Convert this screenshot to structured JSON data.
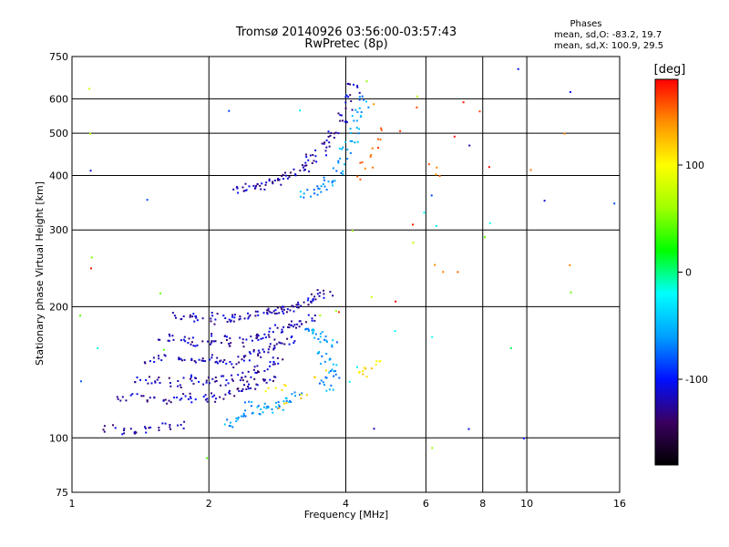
{
  "chart_data": {
    "type": "scatter",
    "title": "Tromsø 20140926 03:56:00-03:57:43",
    "subtitle": "RwPretec (8p)",
    "xlabel": "Frequency [MHz]",
    "ylabel": "Stationary phase Virtual Height [km]",
    "x_scale": "log",
    "y_scale": "log",
    "xlim": [
      1,
      16
    ],
    "ylim": [
      75,
      750
    ],
    "x_ticks": [
      1,
      2,
      4,
      6,
      8,
      10,
      16
    ],
    "x_tick_labels": [
      "1",
      "2",
      "4",
      "6",
      "8",
      "10",
      "16"
    ],
    "y_ticks": [
      75,
      100,
      200,
      300,
      400,
      500,
      600,
      750
    ],
    "y_tick_labels": [
      "75",
      "100",
      "200",
      "300",
      "400",
      "500",
      "600",
      "750"
    ],
    "grid": true,
    "stats": {
      "heading": "Phases",
      "line_o": "mean, sd,O: -83.2, 19.7",
      "line_x": "mean, sd,X: 100.9, 29.5"
    },
    "colorbar": {
      "label": "[deg]",
      "ticks": [
        100,
        0,
        -100
      ],
      "tick_labels": [
        "100",
        "0",
        "-100"
      ],
      "range": [
        -180,
        180
      ],
      "colors": [
        "#000000",
        "#3a0060",
        "#0010ff",
        "#00a0ff",
        "#00ffff",
        "#00ff00",
        "#a0ff00",
        "#ffff00",
        "#ff9000",
        "#ff0000"
      ]
    },
    "series": [
      {
        "phase_deg": -120,
        "points": [
          [
            1.7,
            190
          ],
          [
            1.8,
            190
          ],
          [
            1.9,
            188
          ],
          [
            2.0,
            186
          ],
          [
            2.1,
            190
          ],
          [
            2.2,
            188
          ],
          [
            2.3,
            186
          ],
          [
            2.4,
            190
          ],
          [
            2.5,
            192
          ],
          [
            2.6,
            195
          ],
          [
            2.7,
            193
          ],
          [
            2.8,
            196
          ],
          [
            2.9,
            195
          ],
          [
            3.0,
            198
          ],
          [
            3.1,
            200
          ],
          [
            3.2,
            203
          ],
          [
            3.3,
            206
          ],
          [
            3.4,
            210
          ],
          [
            3.5,
            212
          ],
          [
            3.6,
            215
          ],
          [
            1.6,
            168
          ],
          [
            1.7,
            170
          ],
          [
            1.8,
            168
          ],
          [
            1.9,
            165
          ],
          [
            2.0,
            166
          ],
          [
            2.1,
            170
          ],
          [
            2.2,
            168
          ],
          [
            2.3,
            165
          ],
          [
            2.4,
            168
          ],
          [
            2.5,
            170
          ],
          [
            2.6,
            172
          ],
          [
            2.7,
            170
          ],
          [
            2.8,
            175
          ],
          [
            2.9,
            178
          ],
          [
            3.0,
            180
          ],
          [
            3.1,
            183
          ],
          [
            3.2,
            185
          ],
          [
            3.3,
            188
          ],
          [
            1.5,
            150
          ],
          [
            1.6,
            152
          ],
          [
            1.7,
            150
          ],
          [
            1.8,
            148
          ],
          [
            1.9,
            150
          ],
          [
            2.0,
            152
          ],
          [
            2.1,
            150
          ],
          [
            2.2,
            148
          ],
          [
            2.3,
            150
          ],
          [
            2.4,
            152
          ],
          [
            2.5,
            155
          ],
          [
            2.6,
            158
          ],
          [
            2.7,
            160
          ],
          [
            2.8,
            162
          ],
          [
            2.9,
            165
          ],
          [
            3.0,
            168
          ],
          [
            1.4,
            135
          ],
          [
            1.5,
            136
          ],
          [
            1.6,
            135
          ],
          [
            1.7,
            133
          ],
          [
            1.8,
            135
          ],
          [
            1.9,
            137
          ],
          [
            2.0,
            135
          ],
          [
            2.1,
            134
          ],
          [
            2.2,
            136
          ],
          [
            2.3,
            138
          ],
          [
            2.4,
            140
          ],
          [
            2.5,
            143
          ],
          [
            2.6,
            145
          ],
          [
            2.7,
            147
          ],
          [
            2.8,
            150
          ],
          [
            1.3,
            122
          ],
          [
            1.4,
            124
          ],
          [
            1.5,
            123
          ],
          [
            1.6,
            122
          ],
          [
            1.7,
            124
          ],
          [
            1.8,
            125
          ],
          [
            1.9,
            123
          ],
          [
            2.0,
            122
          ],
          [
            2.1,
            125
          ],
          [
            2.2,
            127
          ],
          [
            2.3,
            128
          ],
          [
            2.4,
            130
          ],
          [
            2.5,
            132
          ],
          [
            2.6,
            134
          ],
          [
            2.7,
            136
          ],
          [
            1.2,
            105
          ],
          [
            1.3,
            104
          ],
          [
            1.4,
            103
          ],
          [
            1.5,
            105
          ],
          [
            1.6,
            106
          ],
          [
            1.7,
            107
          ],
          [
            2.3,
            370
          ],
          [
            2.4,
            372
          ],
          [
            2.5,
            375
          ],
          [
            2.6,
            378
          ],
          [
            2.7,
            382
          ],
          [
            2.8,
            388
          ],
          [
            2.9,
            392
          ],
          [
            3.0,
            398
          ],
          [
            3.1,
            405
          ],
          [
            3.2,
            415
          ],
          [
            3.3,
            425
          ],
          [
            3.4,
            438
          ],
          [
            3.5,
            452
          ],
          [
            3.6,
            468
          ],
          [
            3.7,
            485
          ],
          [
            3.8,
            505
          ],
          [
            3.9,
            530
          ],
          [
            4.0,
            560
          ],
          [
            4.05,
            600
          ],
          [
            4.1,
            640
          ]
        ],
        "spread": 0.04,
        "per_point": 5
      },
      {
        "phase_deg": -60,
        "points": [
          [
            3.3,
            180
          ],
          [
            3.4,
            175
          ],
          [
            3.5,
            172
          ],
          [
            3.6,
            168
          ],
          [
            3.7,
            165
          ],
          [
            3.5,
            155
          ],
          [
            3.6,
            150
          ],
          [
            3.7,
            145
          ],
          [
            3.8,
            140
          ],
          [
            3.6,
            135
          ],
          [
            3.7,
            130
          ],
          [
            2.5,
            120
          ],
          [
            2.6,
            118
          ],
          [
            2.7,
            116
          ],
          [
            2.8,
            118
          ],
          [
            2.9,
            120
          ],
          [
            3.0,
            122
          ],
          [
            3.1,
            125
          ],
          [
            2.2,
            108
          ],
          [
            2.3,
            110
          ],
          [
            2.4,
            112
          ],
          [
            2.5,
            114
          ],
          [
            3.3,
            360
          ],
          [
            3.4,
            368
          ],
          [
            3.5,
            375
          ],
          [
            3.6,
            385
          ],
          [
            3.7,
            395
          ],
          [
            3.8,
            410
          ],
          [
            3.9,
            430
          ],
          [
            4.0,
            455
          ],
          [
            4.1,
            480
          ],
          [
            4.2,
            510
          ],
          [
            4.3,
            540
          ],
          [
            4.35,
            570
          ],
          [
            4.4,
            600
          ]
        ],
        "spread": 0.04,
        "per_point": 5
      },
      {
        "phase_deg": 110,
        "points": [
          [
            3.0,
            130
          ],
          [
            3.2,
            125
          ],
          [
            2.7,
            128
          ],
          [
            4.4,
            142
          ],
          [
            4.5,
            145
          ],
          [
            4.6,
            148
          ],
          [
            4.3,
            140
          ],
          [
            3.5,
            140
          ],
          [
            2.9,
            118
          ]
        ],
        "spread": 0.04,
        "per_point": 3
      },
      {
        "phase_deg": 150,
        "points": [
          [
            4.4,
            430
          ],
          [
            4.5,
            445
          ],
          [
            4.6,
            460
          ],
          [
            4.5,
            420
          ],
          [
            4.7,
            480
          ],
          [
            4.3,
            395
          ],
          [
            6.2,
            420
          ],
          [
            6.3,
            400
          ],
          [
            4.8,
            510
          ]
        ],
        "spread": 0.025,
        "per_point": 2
      },
      {
        "phase_deg": -100,
        "points": [
          [
            4.2,
            640
          ],
          [
            4.3,
            620
          ],
          [
            4.0,
            610
          ],
          [
            1.1,
            410
          ],
          [
            1.45,
            350
          ],
          [
            2.2,
            560
          ],
          [
            6.2,
            360
          ],
          [
            7.5,
            470
          ],
          [
            9.5,
            700
          ],
          [
            11.0,
            350
          ],
          [
            12.5,
            620
          ],
          [
            15.5,
            345
          ],
          [
            4.6,
            105
          ],
          [
            7.5,
            105
          ],
          [
            9.8,
            100
          ],
          [
            1.05,
            135
          ]
        ],
        "spread": 0.01,
        "per_point": 1
      },
      {
        "phase_deg": 60,
        "points": [
          [
            1.1,
            630
          ],
          [
            1.1,
            500
          ],
          [
            1.1,
            260
          ],
          [
            1.05,
            190
          ],
          [
            1.55,
            215
          ],
          [
            3.5,
            190
          ],
          [
            4.6,
            210
          ],
          [
            5.6,
            280
          ],
          [
            8.0,
            290
          ],
          [
            12.5,
            215
          ],
          [
            4.1,
            300
          ],
          [
            3.8,
            195
          ],
          [
            5.8,
            605
          ],
          [
            4.45,
            655
          ],
          [
            2.0,
            90
          ],
          [
            6.2,
            95
          ],
          [
            1.6,
            160
          ]
        ],
        "spread": 0.01,
        "per_point": 1
      },
      {
        "phase_deg": 160,
        "points": [
          [
            1.1,
            245
          ],
          [
            6.5,
            240
          ],
          [
            7.0,
            240
          ],
          [
            6.3,
            250
          ],
          [
            5.3,
            505
          ],
          [
            5.7,
            575
          ],
          [
            7.2,
            590
          ],
          [
            7.9,
            560
          ],
          [
            10.3,
            410
          ],
          [
            12.0,
            500
          ],
          [
            6.9,
            490
          ],
          [
            5.6,
            310
          ],
          [
            8.2,
            420
          ],
          [
            3.9,
            195
          ],
          [
            5.1,
            205
          ],
          [
            4.6,
            585
          ],
          [
            12.5,
            250
          ]
        ],
        "spread": 0.01,
        "per_point": 1
      },
      {
        "phase_deg": -10,
        "points": [
          [
            4.1,
            135
          ],
          [
            4.2,
            145
          ],
          [
            5.1,
            175
          ],
          [
            6.0,
            330
          ],
          [
            6.3,
            305
          ],
          [
            8.3,
            310
          ],
          [
            3.2,
            565
          ],
          [
            6.2,
            170
          ],
          [
            9.3,
            160
          ],
          [
            1.15,
            160
          ]
        ],
        "spread": 0.01,
        "per_point": 1
      }
    ]
  }
}
